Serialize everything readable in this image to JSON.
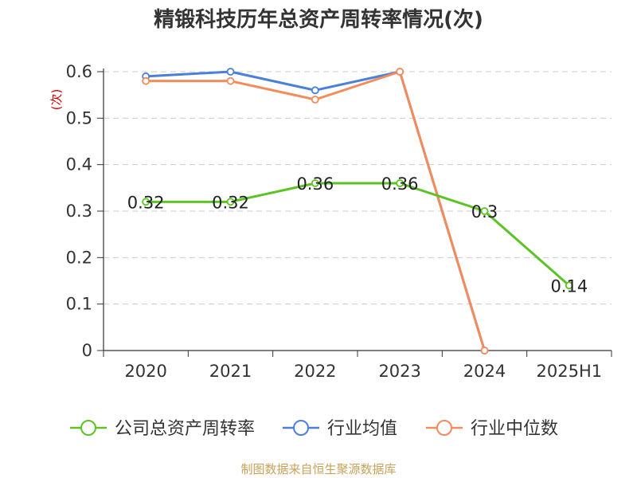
{
  "chart_data": {
    "type": "line",
    "title": "精锻科技历年总资产周转率情况(次)",
    "ylabel": "(次)",
    "xlabel": "",
    "categories": [
      "2020",
      "2021",
      "2022",
      "2023",
      "2024",
      "2025H1"
    ],
    "ylim": [
      0,
      0.6
    ],
    "yticks": [
      0,
      0.1,
      0.2,
      0.3,
      0.4,
      0.5,
      0.6
    ],
    "grid": true,
    "legend_position": "bottom",
    "series": [
      {
        "name": "公司总资产周转率",
        "color": "#5bc424",
        "values": [
          0.32,
          0.32,
          0.36,
          0.36,
          0.3,
          0.14
        ],
        "labels": [
          "0.32",
          "0.32",
          "0.36",
          "0.36",
          "0.3",
          "0.14"
        ]
      },
      {
        "name": "行业均值",
        "color": "#4a7fdc",
        "values": [
          0.59,
          0.6,
          0.56,
          0.6,
          0,
          null
        ]
      },
      {
        "name": "行业中位数",
        "color": "#f38b5a",
        "values": [
          0.58,
          0.58,
          0.54,
          0.6,
          0,
          null
        ]
      }
    ]
  },
  "source": "制图数据来自恒生聚源数据库"
}
